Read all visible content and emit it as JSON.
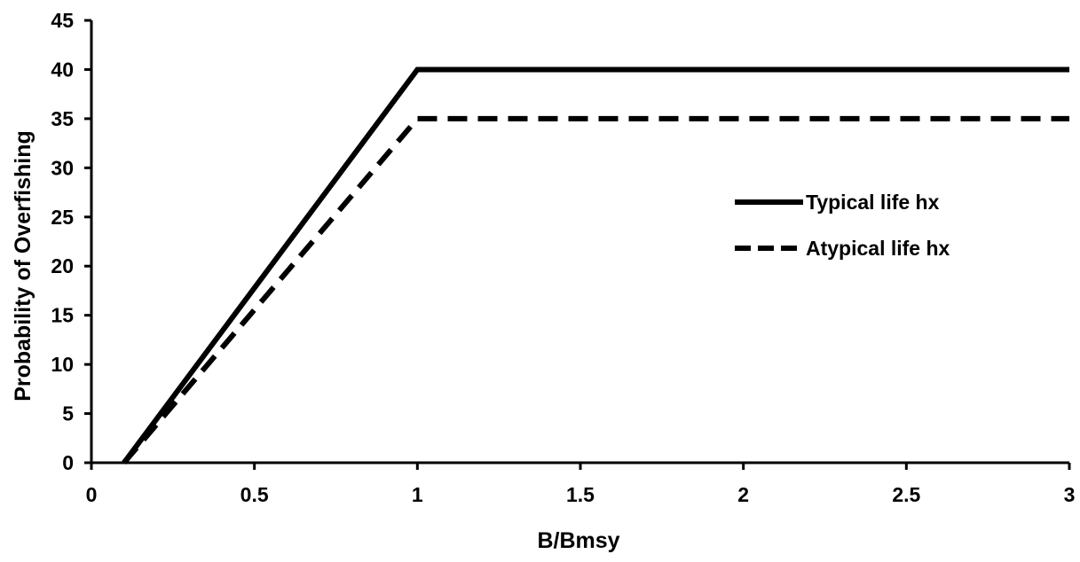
{
  "chart_data": {
    "type": "line",
    "title": "",
    "xlabel": "B/Bmsy",
    "ylabel": "Probability of Overfishing",
    "xlim": [
      0,
      3
    ],
    "ylim": [
      0,
      45
    ],
    "x_ticks": [
      0,
      0.5,
      1,
      1.5,
      2,
      2.5,
      3
    ],
    "x_tick_labels": [
      "0",
      "0.5",
      "1",
      "1.5",
      "2",
      "2.5",
      "3"
    ],
    "y_ticks": [
      0,
      5,
      10,
      15,
      20,
      25,
      30,
      35,
      40,
      45
    ],
    "y_tick_labels": [
      "0",
      "5",
      "10",
      "15",
      "20",
      "25",
      "30",
      "35",
      "40",
      "45"
    ],
    "grid": false,
    "legend_position": "right",
    "series": [
      {
        "name": "Typical life hx",
        "style": "solid",
        "color": "#000000",
        "x": [
          0.1,
          1,
          3
        ],
        "y": [
          0,
          40,
          40
        ]
      },
      {
        "name": "Atypical life hx",
        "style": "dashed",
        "color": "#000000",
        "x": [
          0.1,
          1,
          3
        ],
        "y": [
          0,
          35,
          35
        ]
      }
    ]
  }
}
